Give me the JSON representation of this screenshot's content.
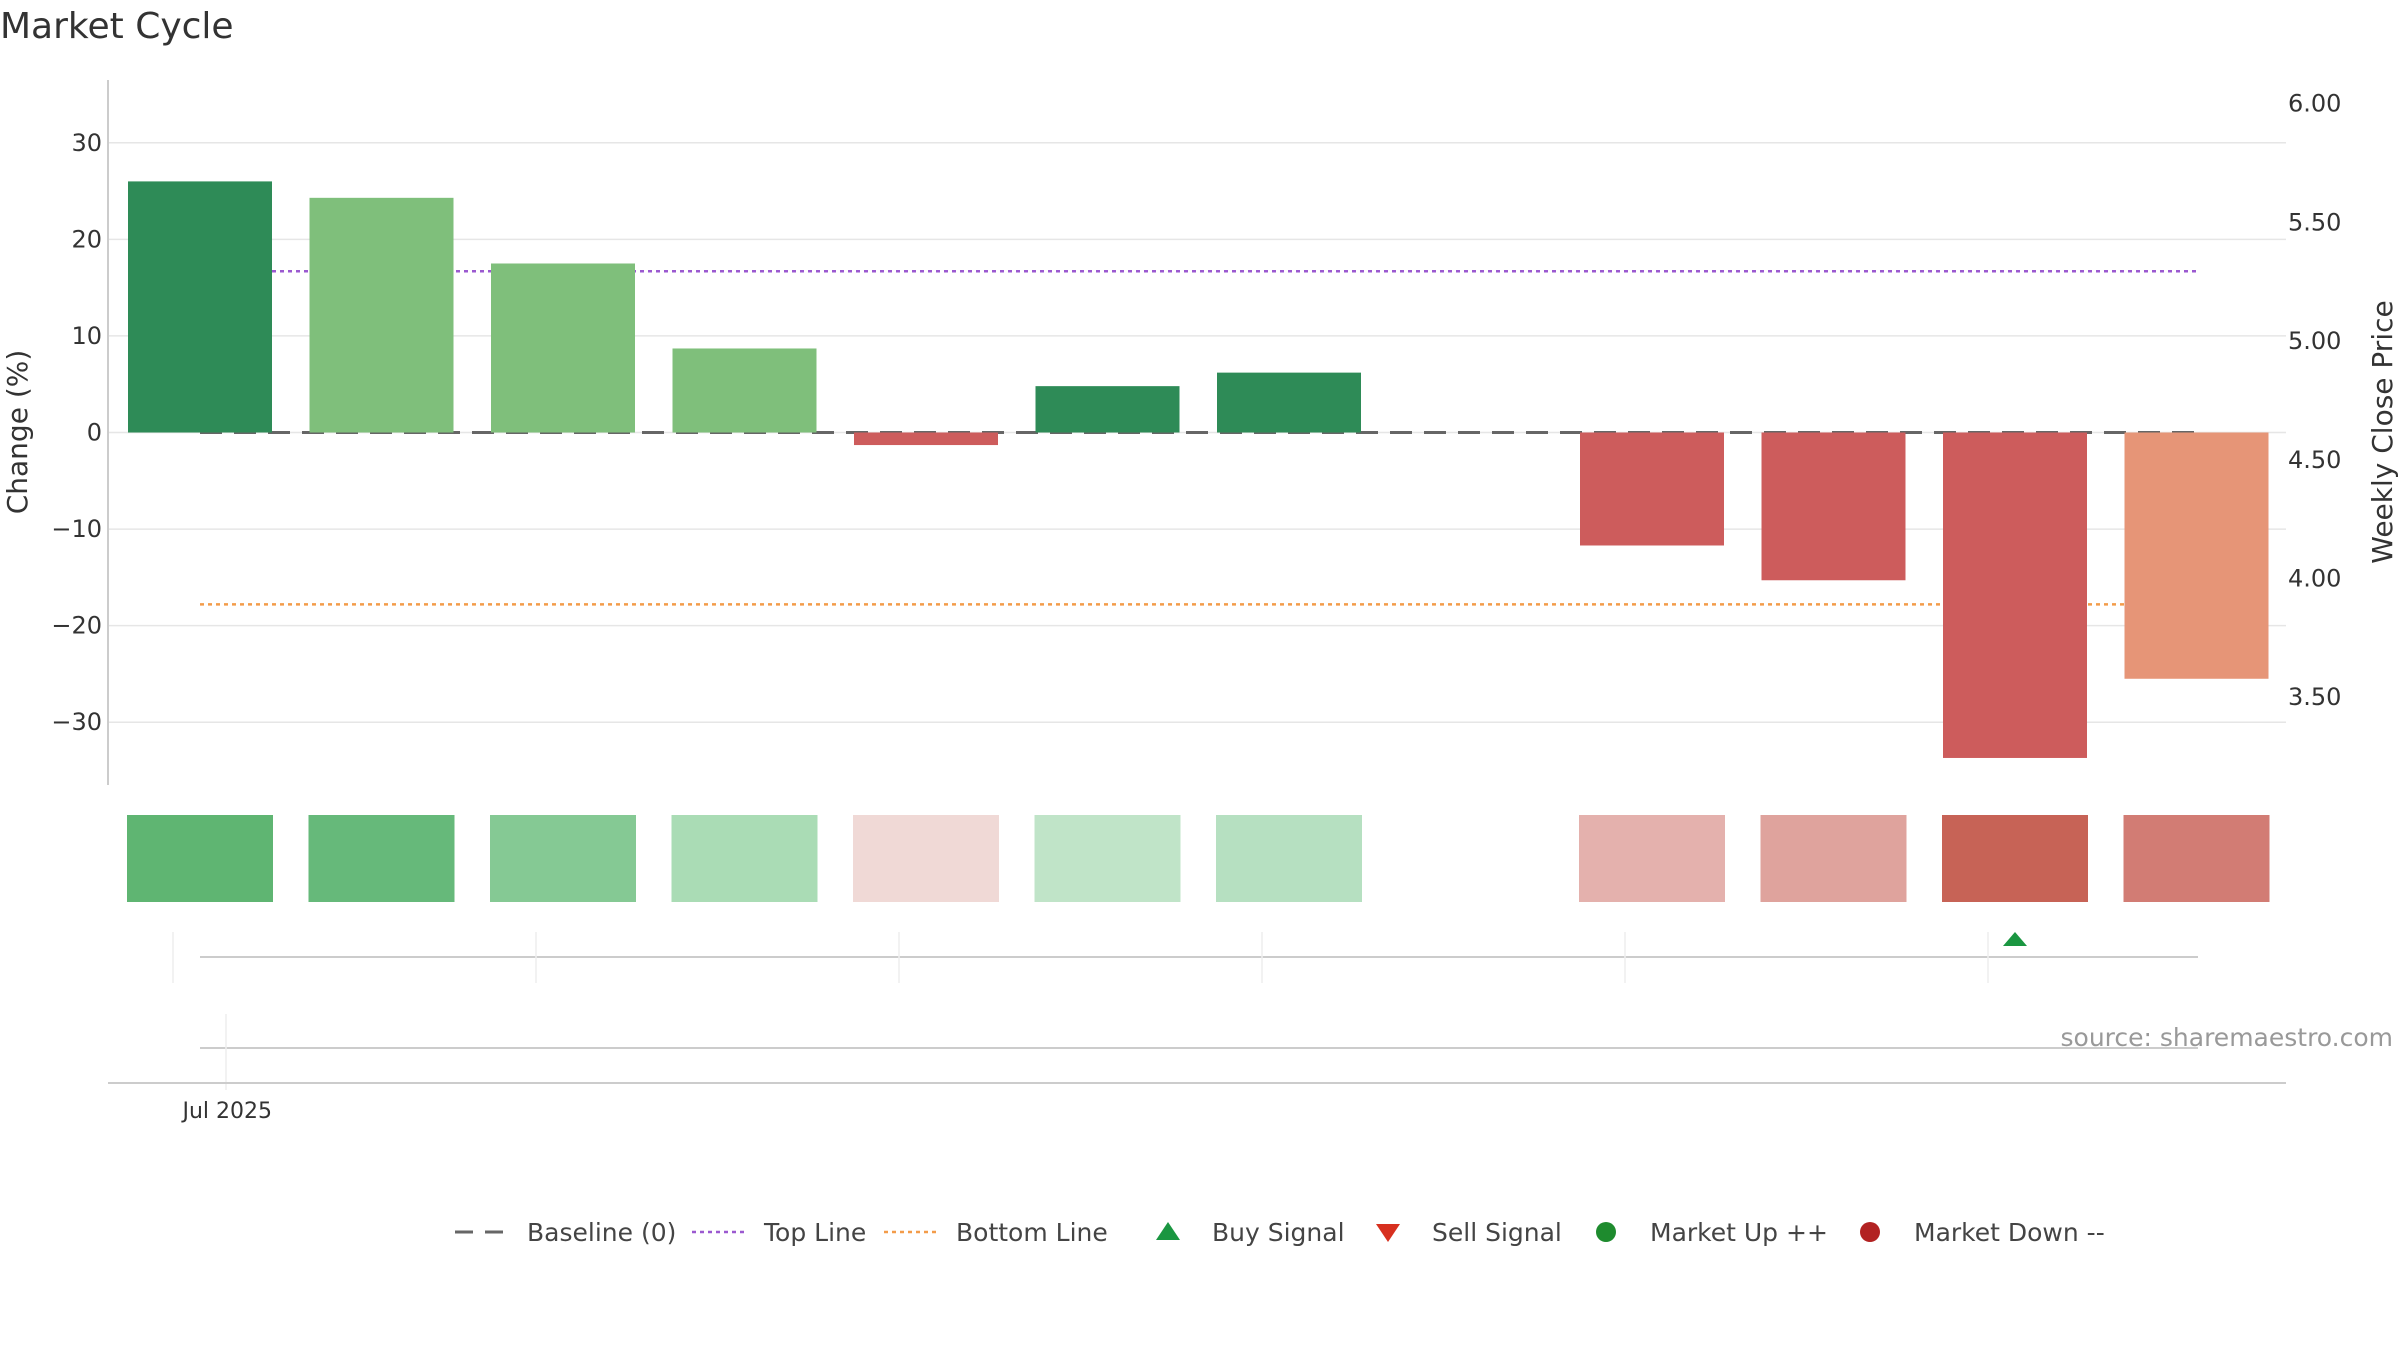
{
  "title": "Market Cycle",
  "source": "source: sharemaestro.com",
  "chart_data": {
    "type": "bar",
    "title": "Market Cycle",
    "ylabel": "Change (%)",
    "y2label": "Weekly Close Price",
    "ylim": [
      -36.5,
      36.5
    ],
    "y2lim": [
      3.13,
      6.1
    ],
    "yticks": [
      30,
      20,
      10,
      0,
      -10,
      -20,
      -30
    ],
    "yticks_text": [
      "30",
      "20",
      "10",
      "0",
      "−10",
      "−20",
      "−30"
    ],
    "y2ticks": [
      6.0,
      5.5,
      5.0,
      4.5,
      4.0,
      3.5
    ],
    "y2ticks_text": [
      "6.00",
      "5.50",
      "5.00",
      "4.50",
      "4.00",
      "3.50"
    ],
    "x_tick_labels": [
      {
        "index": 0.15,
        "label": "Jul 2025"
      }
    ],
    "bars": [
      {
        "index": 0,
        "value": 26,
        "color": "#2e8b57"
      },
      {
        "index": 1,
        "value": 24.3,
        "color": "#7fbf7b"
      },
      {
        "index": 2,
        "value": 17.5,
        "color": "#7fbf7b"
      },
      {
        "index": 3,
        "value": 8.7,
        "color": "#7fbf7b"
      },
      {
        "index": 4,
        "value": -1.3,
        "color": "#cd5c5c"
      },
      {
        "index": 5,
        "value": 4.8,
        "color": "#2e8b57"
      },
      {
        "index": 6,
        "value": 6.2,
        "color": "#2e8b57"
      },
      {
        "index": 8,
        "value": -11.7,
        "color": "#cd5c5c"
      },
      {
        "index": 9,
        "value": -15.3,
        "color": "#cd5c5c"
      },
      {
        "index": 10,
        "value": -33.7,
        "color": "#cd5c5c"
      },
      {
        "index": 11,
        "value": -25.5,
        "color": "#e69577"
      }
    ],
    "heat_strip": [
      {
        "index": 0,
        "color": "#5fb572"
      },
      {
        "index": 1,
        "color": "#66b97a"
      },
      {
        "index": 2,
        "color": "#85c994"
      },
      {
        "index": 3,
        "color": "#aadcb5"
      },
      {
        "index": 4,
        "color": "#f0d9d6"
      },
      {
        "index": 5,
        "color": "#c0e4c8"
      },
      {
        "index": 6,
        "color": "#b6e0c1"
      },
      {
        "index": 8,
        "color": "#e4b1ad"
      },
      {
        "index": 9,
        "color": "#dfa39d"
      },
      {
        "index": 10,
        "color": "#c76356"
      },
      {
        "index": 11,
        "color": "#d27c74"
      }
    ],
    "reference_lines": [
      {
        "name": "Baseline (0)",
        "value": 0,
        "style": "dashed",
        "color": "#666666"
      },
      {
        "name": "Top Line",
        "value": 16.7,
        "style": "dotted",
        "color": "#9b59d0"
      },
      {
        "name": "Bottom Line",
        "value": -17.8,
        "style": "dotted",
        "color": "#f39c4a"
      }
    ],
    "signals": [
      {
        "type": "Buy Signal",
        "index": 10,
        "color": "#1a9641"
      }
    ],
    "legend": [
      {
        "label": "Baseline (0)",
        "kind": "dashed",
        "color": "#666666"
      },
      {
        "label": "Top Line",
        "kind": "dotted",
        "color": "#9b59d0"
      },
      {
        "label": "Bottom Line",
        "kind": "dotted",
        "color": "#f39c4a"
      },
      {
        "label": "Buy Signal",
        "kind": "triangle-up",
        "color": "#1a9641"
      },
      {
        "label": "Sell Signal",
        "kind": "triangle-down",
        "color": "#d7301f"
      },
      {
        "label": "Market Up ++",
        "kind": "circle",
        "color": "#1e8b2e"
      },
      {
        "label": "Market Down --",
        "kind": "circle",
        "color": "#b22222"
      }
    ]
  }
}
